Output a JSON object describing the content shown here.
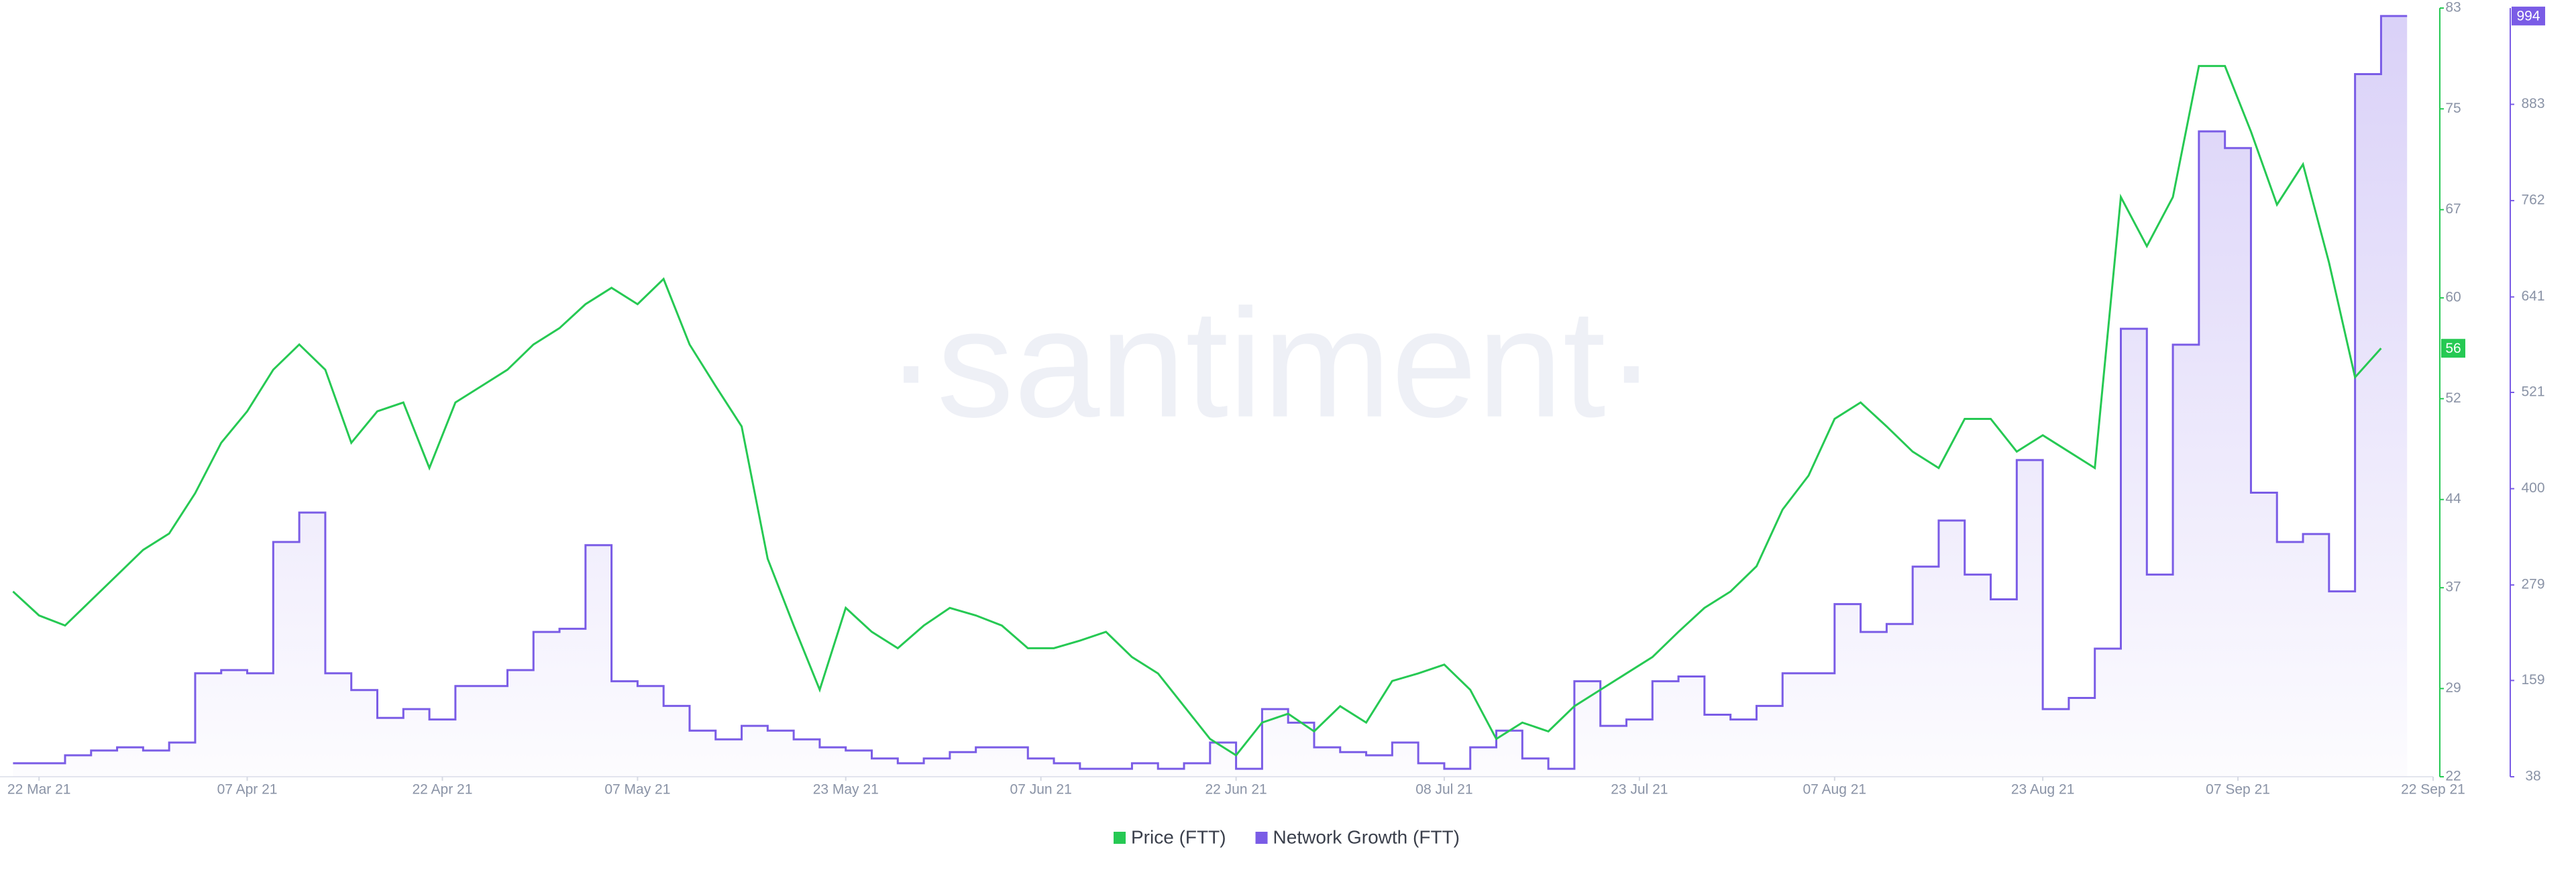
{
  "chart_data": {
    "type": "line",
    "watermark": "·santiment·",
    "x": [
      "2021-03-20",
      "2021-03-22",
      "2021-03-24",
      "2021-03-26",
      "2021-03-28",
      "2021-03-30",
      "2021-04-01",
      "2021-04-03",
      "2021-04-05",
      "2021-04-07",
      "2021-04-09",
      "2021-04-11",
      "2021-04-13",
      "2021-04-15",
      "2021-04-17",
      "2021-04-19",
      "2021-04-21",
      "2021-04-23",
      "2021-04-25",
      "2021-04-27",
      "2021-04-29",
      "2021-05-01",
      "2021-05-03",
      "2021-05-05",
      "2021-05-07",
      "2021-05-09",
      "2021-05-11",
      "2021-05-13",
      "2021-05-15",
      "2021-05-17",
      "2021-05-19",
      "2021-05-21",
      "2021-05-23",
      "2021-05-25",
      "2021-05-27",
      "2021-05-29",
      "2021-05-31",
      "2021-06-02",
      "2021-06-04",
      "2021-06-06",
      "2021-06-08",
      "2021-06-10",
      "2021-06-12",
      "2021-06-14",
      "2021-06-16",
      "2021-06-18",
      "2021-06-20",
      "2021-06-22",
      "2021-06-24",
      "2021-06-26",
      "2021-06-28",
      "2021-06-30",
      "2021-07-02",
      "2021-07-04",
      "2021-07-06",
      "2021-07-08",
      "2021-07-10",
      "2021-07-12",
      "2021-07-14",
      "2021-07-16",
      "2021-07-18",
      "2021-07-20",
      "2021-07-22",
      "2021-07-24",
      "2021-07-26",
      "2021-07-28",
      "2021-07-30",
      "2021-08-01",
      "2021-08-03",
      "2021-08-05",
      "2021-08-07",
      "2021-08-09",
      "2021-08-11",
      "2021-08-13",
      "2021-08-15",
      "2021-08-17",
      "2021-08-19",
      "2021-08-21",
      "2021-08-23",
      "2021-08-25",
      "2021-08-27",
      "2021-08-29",
      "2021-08-31",
      "2021-09-02",
      "2021-09-04",
      "2021-09-06",
      "2021-09-08",
      "2021-09-10",
      "2021-09-12",
      "2021-09-14",
      "2021-09-16",
      "2021-09-18"
    ],
    "xlim": [
      "2021-03-19",
      "2021-09-22"
    ],
    "xticks": [
      {
        "value": "2021-03-22",
        "label": "22 Mar 21"
      },
      {
        "value": "2021-04-07",
        "label": "07 Apr 21"
      },
      {
        "value": "2021-04-22",
        "label": "22 Apr 21"
      },
      {
        "value": "2021-05-07",
        "label": "07 May 21"
      },
      {
        "value": "2021-05-23",
        "label": "23 May 21"
      },
      {
        "value": "2021-06-07",
        "label": "07 Jun 21"
      },
      {
        "value": "2021-06-22",
        "label": "22 Jun 21"
      },
      {
        "value": "2021-07-08",
        "label": "08 Jul 21"
      },
      {
        "value": "2021-07-23",
        "label": "23 Jul 21"
      },
      {
        "value": "2021-08-07",
        "label": "07 Aug 21"
      },
      {
        "value": "2021-08-23",
        "label": "23 Aug 21"
      },
      {
        "value": "2021-09-07",
        "label": "07 Sep 21"
      },
      {
        "value": "2021-09-22",
        "label": "22 Sep 21"
      }
    ],
    "ylim": [
      22,
      83
    ],
    "yticks": [
      22,
      29,
      37,
      44,
      52,
      60,
      67,
      75,
      83
    ],
    "y2lim": [
      38,
      1004
    ],
    "y2ticks": [
      38,
      159,
      279,
      400,
      521,
      641,
      762,
      883
    ],
    "series": [
      {
        "name": "Price (FTT)",
        "color": "#26c953",
        "values": [
          36.7,
          34.8,
          34,
          36,
          38,
          40,
          41.3,
          44.5,
          48.5,
          51,
          54.3,
          56.3,
          54.3,
          48.5,
          51,
          51.7,
          46.5,
          51.7,
          53,
          54.3,
          56.3,
          57.6,
          59.5,
          60.8,
          59.5,
          61.5,
          56.3,
          53,
          49.8,
          39.3,
          34,
          28.9,
          35.4,
          33.5,
          32.2,
          34,
          35.4,
          34.8,
          34,
          32.2,
          32.2,
          32.8,
          33.5,
          31.5,
          30.2,
          27.6,
          25,
          23.7,
          26.3,
          27,
          25.6,
          27.6,
          26.3,
          29.6,
          30.2,
          30.9,
          28.9,
          25,
          26.3,
          25.6,
          27.6,
          28.9,
          30.2,
          31.5,
          33.5,
          35.4,
          36.7,
          38.7,
          43.2,
          45.9,
          50.4,
          51.7,
          49.8,
          47.8,
          46.5,
          50.4,
          50.4,
          47.8,
          49.1,
          47.8,
          46.5,
          68,
          64.1,
          68,
          78.4,
          78.4,
          73.2,
          67.4,
          70.6,
          62.8,
          53.7,
          56
        ]
      },
      {
        "name": "Network Growth (FTT)",
        "color": "#7a5ce6",
        "axis": "y2",
        "values": [
          55,
          55,
          65,
          71,
          75,
          71,
          81,
          168,
          172,
          168,
          333,
          370,
          168,
          147,
          112,
          123,
          110,
          152,
          152,
          172,
          220,
          224,
          329,
          158,
          152,
          127,
          96,
          85,
          102,
          96,
          85,
          75,
          71,
          61,
          55,
          61,
          69,
          75,
          75,
          61,
          55,
          48,
          48,
          55,
          48,
          55,
          81,
          48,
          123,
          106,
          75,
          69,
          65,
          81,
          55,
          48,
          75,
          96,
          61,
          48,
          158,
          102,
          110,
          158,
          164,
          116,
          110,
          127,
          168,
          168,
          255,
          220,
          230,
          302,
          360,
          292,
          261,
          436,
          123,
          137,
          199,
          601,
          292,
          581,
          849,
          828,
          395,
          333,
          343,
          271,
          921,
          994
        ]
      }
    ]
  }
}
